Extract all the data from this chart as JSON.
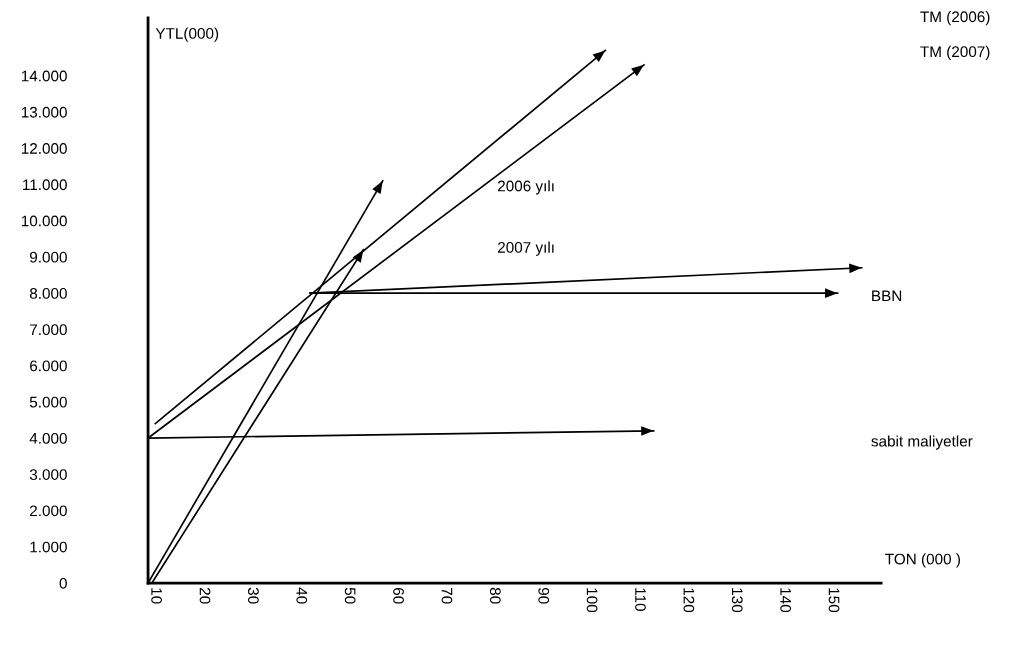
{
  "chart_data": {
    "type": "line",
    "xlabel": "TON (000 )",
    "ylabel": "YTL(000)",
    "xlim": [
      8.5,
      160
    ],
    "ylim": [
      0,
      15600
    ],
    "xticks": [
      10,
      20,
      30,
      40,
      50,
      60,
      70,
      80,
      90,
      100,
      110,
      120,
      130,
      140,
      150
    ],
    "yticks": [
      {
        "value": 0,
        "label": "0"
      },
      {
        "value": 1000,
        "label": "1.000"
      },
      {
        "value": 2000,
        "label": "2.000"
      },
      {
        "value": 3000,
        "label": "3.000"
      },
      {
        "value": 4000,
        "label": "4.000"
      },
      {
        "value": 5000,
        "label": "5.000"
      },
      {
        "value": 6000,
        "label": "6.000"
      },
      {
        "value": 7000,
        "label": "7.000"
      },
      {
        "value": 8000,
        "label": "8.000"
      },
      {
        "value": 9000,
        "label": "9.000"
      },
      {
        "value": 10000,
        "label": "10.000"
      },
      {
        "value": 11000,
        "label": "11.000"
      },
      {
        "value": 12000,
        "label": "12.000"
      },
      {
        "value": 13000,
        "label": "13.000"
      },
      {
        "value": 14000,
        "label": "14.000"
      }
    ],
    "grid": false,
    "legend": false,
    "marker": "none",
    "line_style": "solid",
    "series": [
      {
        "color": "#000000",
        "x": [
          8.5,
          113
        ],
        "values": [
          4000,
          4200
        ]
      },
      {
        "color": "#000000",
        "x": [
          42,
          151
        ],
        "values": [
          8000,
          8000
        ]
      },
      {
        "color": "#000000",
        "x": [
          42,
          156
        ],
        "values": [
          8000,
          8700
        ]
      },
      {
        "color": "#000000",
        "x": [
          10,
          103
        ],
        "values": [
          4400,
          14700
        ]
      },
      {
        "color": "#000000",
        "x": [
          8.5,
          111
        ],
        "values": [
          4000,
          14300
        ]
      },
      {
        "color": "#000000",
        "x": [
          8.5,
          57
        ],
        "values": [
          0,
          11100
        ]
      },
      {
        "color": "#000000",
        "x": [
          9.3,
          53
        ],
        "values": [
          0,
          9200
        ]
      }
    ],
    "annotations": [
      "TM (2006)",
      "TM (2007)",
      "2006 yılı",
      "2007 yılı",
      "BBN",
      "sabit maliyetler"
    ]
  }
}
